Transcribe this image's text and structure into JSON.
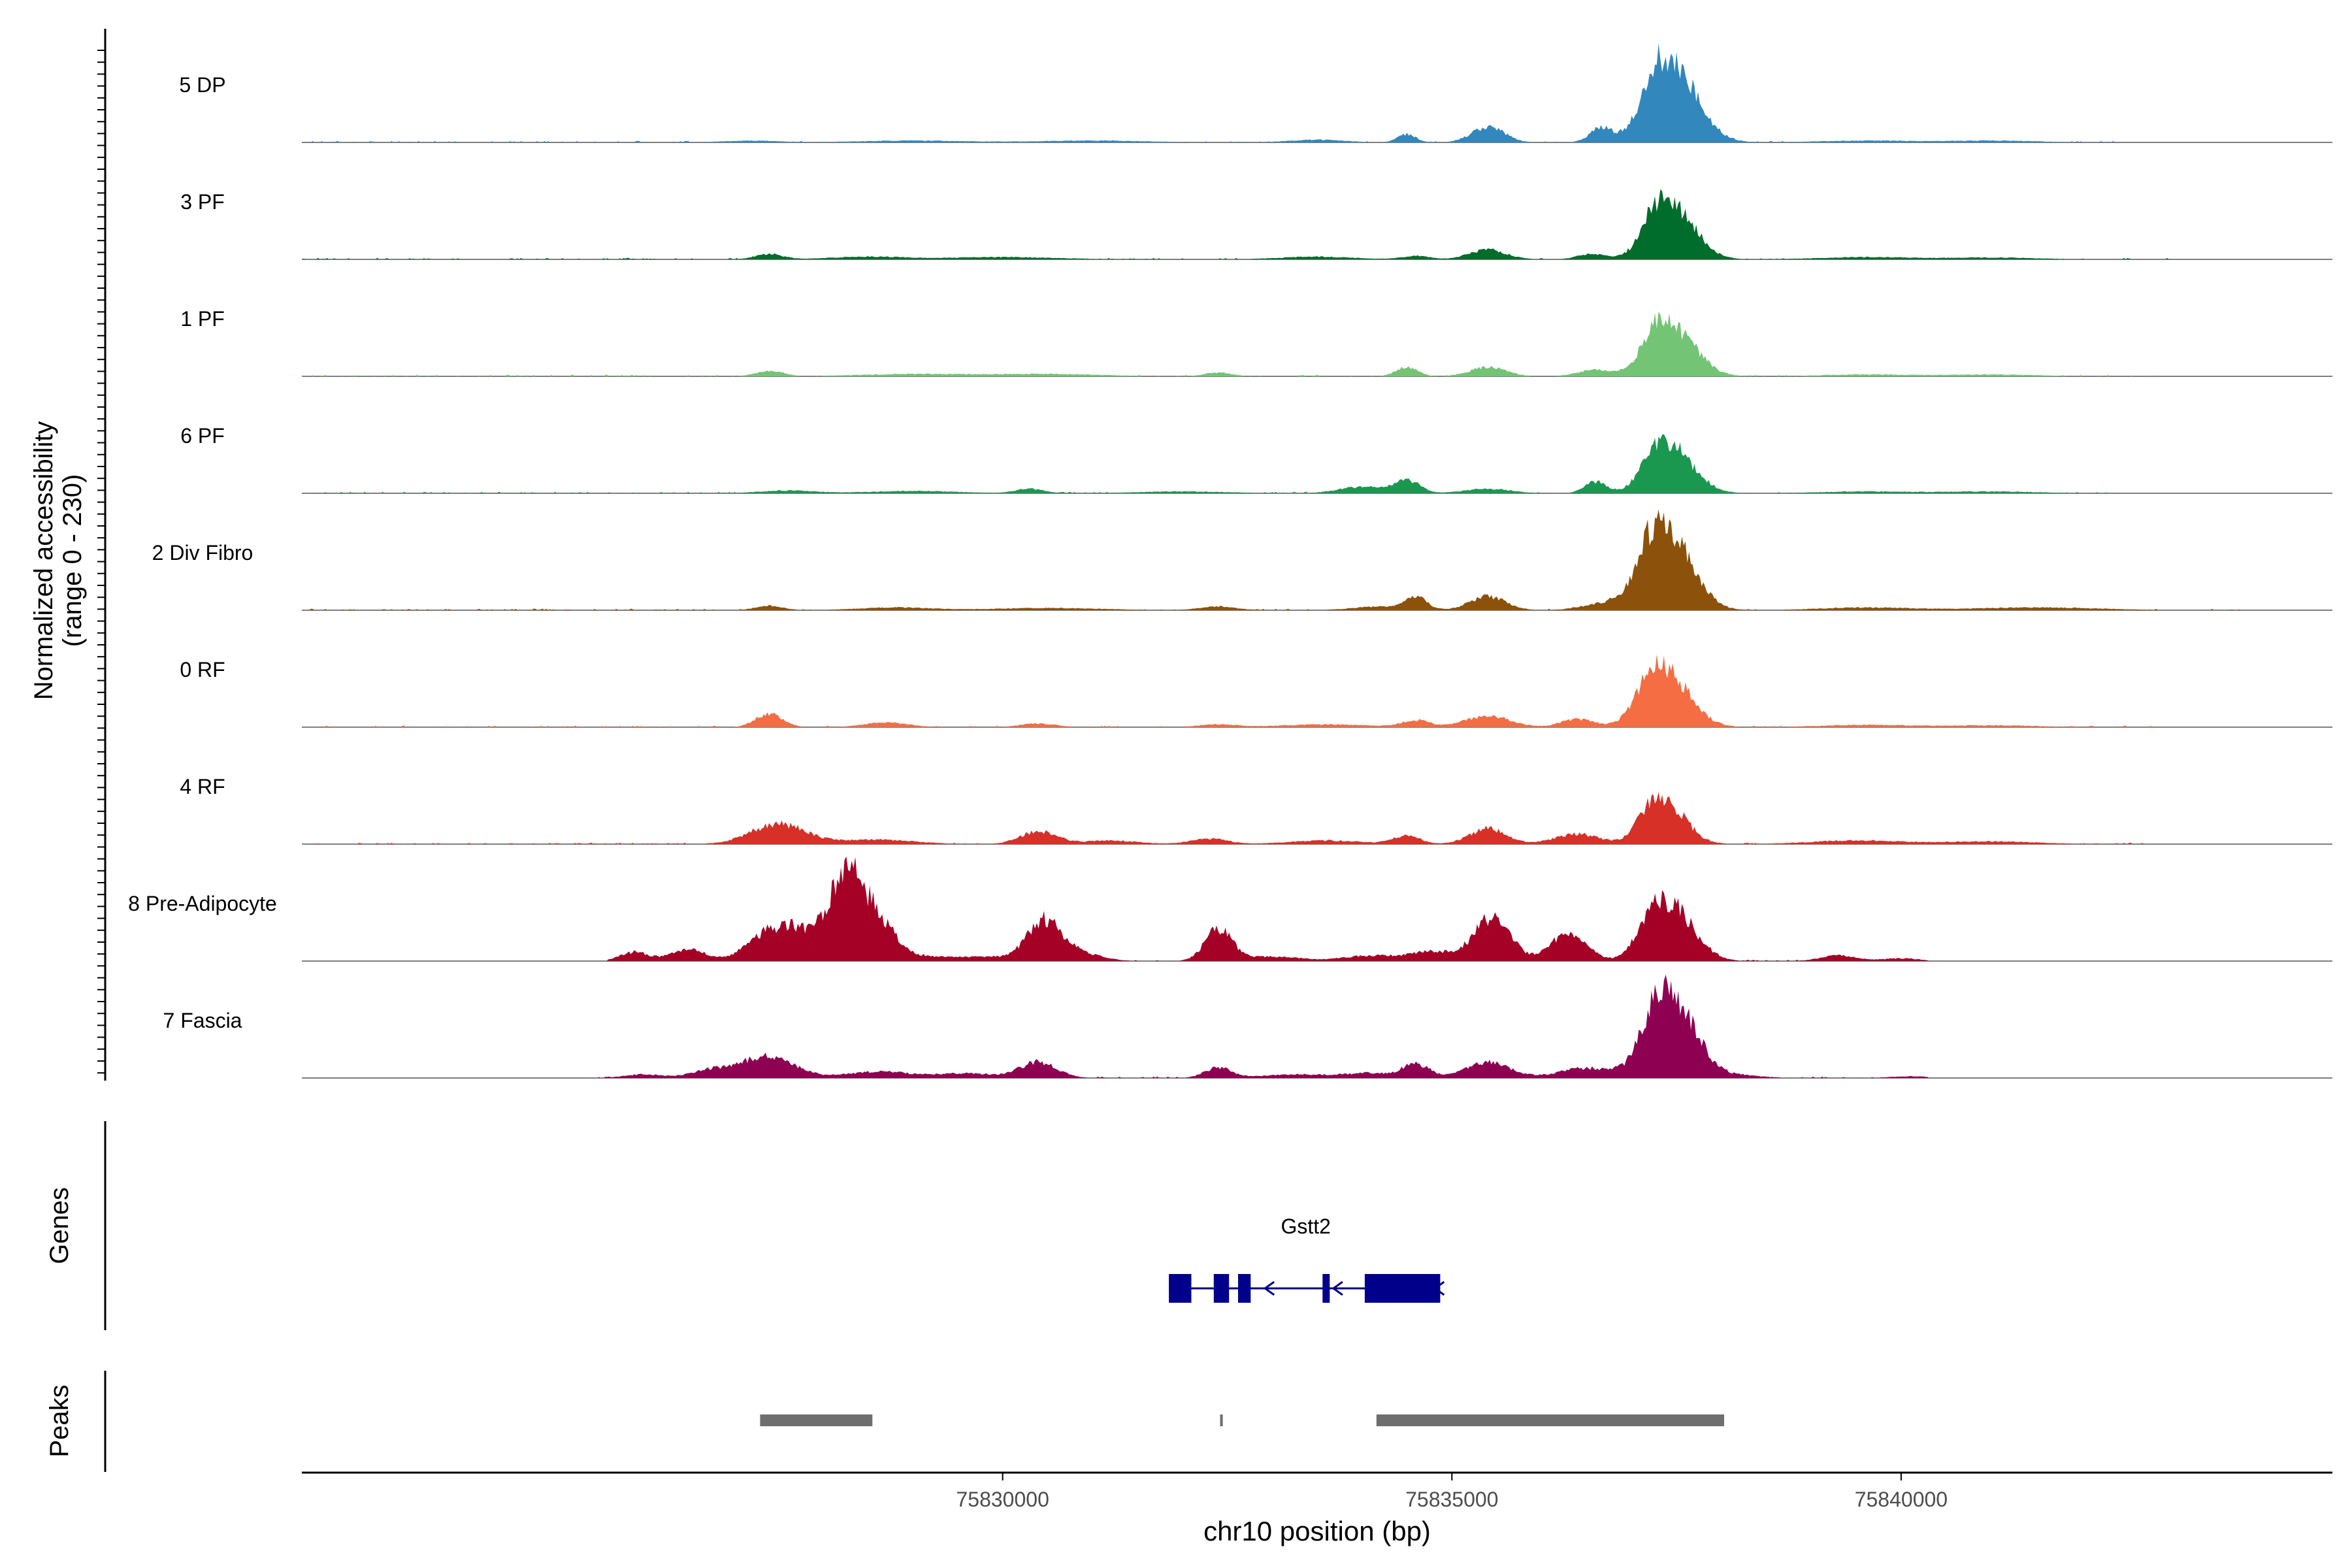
{
  "chart_data": {
    "type": "area",
    "subtype": "coverage-track",
    "y_axis_label_line1": "Normalized accessibility",
    "y_axis_label_line2": "(range 0 - 230)",
    "y_range": [
      0,
      230
    ],
    "x_label": "chr10 position (bp)",
    "xlim": [
      75822200,
      75844800
    ],
    "x_ticks": [
      75830000,
      75835000,
      75840000
    ],
    "x_tick_labels": [
      "75830000",
      "75835000",
      "75840000"
    ],
    "genes_label": "Genes",
    "peaks_label": "Peaks",
    "tracks": [
      {
        "name": "5 DP",
        "color": "#3288bd",
        "peaks": [
          [
            75837450,
            165,
            280
          ],
          [
            75837250,
            45,
            120
          ],
          [
            75836650,
            30,
            120
          ],
          [
            75835400,
            35,
            180
          ],
          [
            75834500,
            18,
            100
          ],
          [
            75833500,
            6,
            300
          ],
          [
            75831000,
            4,
            600
          ],
          [
            75829000,
            4,
            600
          ],
          [
            75827200,
            4,
            300
          ],
          [
            75839600,
            4,
            500
          ],
          [
            75841000,
            4,
            500
          ]
        ],
        "range": [
          75822200,
          75842400
        ]
      },
      {
        "name": "3 PF",
        "color": "#006d2c",
        "peaks": [
          [
            75837450,
            115,
            250
          ],
          [
            75837250,
            40,
            130
          ],
          [
            75836550,
            12,
            150
          ],
          [
            75835400,
            22,
            200
          ],
          [
            75834600,
            8,
            150
          ],
          [
            75833500,
            6,
            400
          ],
          [
            75827400,
            12,
            150
          ],
          [
            75828500,
            6,
            400
          ],
          [
            75830000,
            5,
            600
          ],
          [
            75839600,
            5,
            500
          ],
          [
            75841000,
            4,
            500
          ]
        ],
        "range": [
          75822200,
          75843200
        ]
      },
      {
        "name": "1 PF",
        "color": "#74c476",
        "peaks": [
          [
            75837450,
            105,
            260
          ],
          [
            75837250,
            40,
            140
          ],
          [
            75836600,
            14,
            200
          ],
          [
            75835400,
            20,
            200
          ],
          [
            75834500,
            20,
            120
          ],
          [
            75832400,
            8,
            150
          ],
          [
            75827400,
            12,
            150
          ],
          [
            75829000,
            5,
            600
          ],
          [
            75830500,
            5,
            600
          ],
          [
            75839600,
            4,
            500
          ],
          [
            75841000,
            4,
            500
          ]
        ],
        "range": [
          75822200,
          75842800
        ]
      },
      {
        "name": "6 PF",
        "color": "#1a9850",
        "peaks": [
          [
            75837450,
            95,
            250
          ],
          [
            75837250,
            40,
            140
          ],
          [
            75836600,
            25,
            120
          ],
          [
            75834500,
            28,
            140
          ],
          [
            75834000,
            14,
            250
          ],
          [
            75835400,
            10,
            250
          ],
          [
            75830300,
            10,
            150
          ],
          [
            75827600,
            6,
            300
          ],
          [
            75829000,
            5,
            500
          ],
          [
            75832000,
            4,
            500
          ],
          [
            75839600,
            4,
            500
          ],
          [
            75841000,
            4,
            500
          ]
        ],
        "range": [
          75822200,
          75842400
        ]
      },
      {
        "name": "2 Div Fibro",
        "color": "#8c510a",
        "peaks": [
          [
            75837400,
            165,
            270
          ],
          [
            75837200,
            50,
            140
          ],
          [
            75836700,
            14,
            250
          ],
          [
            75835400,
            30,
            200
          ],
          [
            75834600,
            28,
            120
          ],
          [
            75834200,
            8,
            300
          ],
          [
            75832400,
            8,
            200
          ],
          [
            75827400,
            10,
            150
          ],
          [
            75828800,
            6,
            400
          ],
          [
            75830500,
            5,
            600
          ],
          [
            75839600,
            6,
            500
          ],
          [
            75841500,
            6,
            700
          ]
        ],
        "range": [
          75822200,
          75843800
        ]
      },
      {
        "name": "0 RF",
        "color": "#f46d43",
        "peaks": [
          [
            75837400,
            110,
            260
          ],
          [
            75837200,
            50,
            150
          ],
          [
            75836400,
            18,
            180
          ],
          [
            75835400,
            25,
            250
          ],
          [
            75834600,
            15,
            150
          ],
          [
            75833600,
            6,
            500
          ],
          [
            75827400,
            30,
            150
          ],
          [
            75828700,
            10,
            250
          ],
          [
            75830400,
            8,
            200
          ],
          [
            75832400,
            6,
            200
          ],
          [
            75839600,
            5,
            500
          ],
          [
            75841000,
            4,
            500
          ]
        ],
        "range": [
          75822200,
          75842800
        ]
      },
      {
        "name": "4 RF",
        "color": "#d73027",
        "peaks": [
          [
            75837400,
            80,
            220
          ],
          [
            75837200,
            40,
            150
          ],
          [
            75836400,
            22,
            250
          ],
          [
            75835400,
            35,
            200
          ],
          [
            75834500,
            18,
            150
          ],
          [
            75833600,
            8,
            400
          ],
          [
            75827500,
            45,
            300
          ],
          [
            75828600,
            10,
            400
          ],
          [
            75830400,
            28,
            200
          ],
          [
            75832300,
            12,
            200
          ],
          [
            75831200,
            8,
            300
          ],
          [
            75839500,
            8,
            500
          ],
          [
            75841000,
            6,
            500
          ]
        ],
        "range": [
          75822200,
          75842800
        ]
      },
      {
        "name": "8 Pre-Adipocyte",
        "color": "#a50026",
        "peaks": [
          [
            75837450,
            115,
            250
          ],
          [
            75837200,
            50,
            150
          ],
          [
            75836300,
            60,
            200
          ],
          [
            75835450,
            95,
            200
          ],
          [
            75834800,
            20,
            250
          ],
          [
            75834100,
            12,
            300
          ],
          [
            75828250,
            185,
            180
          ],
          [
            75828600,
            85,
            180
          ],
          [
            75827700,
            70,
            250
          ],
          [
            75827300,
            40,
            200
          ],
          [
            75826500,
            25,
            200
          ],
          [
            75830450,
            85,
            180
          ],
          [
            75830800,
            20,
            250
          ],
          [
            75829000,
            12,
            300
          ],
          [
            75829800,
            10,
            300
          ],
          [
            75832400,
            70,
            150
          ],
          [
            75833000,
            10,
            300
          ],
          [
            75825900,
            20,
            150
          ],
          [
            75839300,
            12,
            200
          ],
          [
            75840000,
            6,
            200
          ]
        ],
        "range": [
          75825600,
          75840300
        ]
      },
      {
        "name": "7 Fascia",
        "color": "#8e0152",
        "peaks": [
          [
            75837450,
            175,
            260
          ],
          [
            75837250,
            50,
            140
          ],
          [
            75836500,
            22,
            300
          ],
          [
            75835400,
            35,
            250
          ],
          [
            75834600,
            30,
            150
          ],
          [
            75834100,
            10,
            250
          ],
          [
            75827400,
            48,
            280
          ],
          [
            75826800,
            18,
            250
          ],
          [
            75828600,
            14,
            350
          ],
          [
            75830400,
            35,
            200
          ],
          [
            75829600,
            10,
            350
          ],
          [
            75832400,
            22,
            150
          ],
          [
            75833300,
            8,
            400
          ],
          [
            75826000,
            8,
            200
          ],
          [
            75838200,
            6,
            250
          ],
          [
            75840100,
            4,
            200
          ]
        ],
        "range": [
          75825500,
          75840300
        ]
      }
    ],
    "genes": [
      {
        "name": "Gstt2",
        "strand": "-",
        "start": 75831850,
        "end": 75834870,
        "exons": [
          [
            75831850,
            75832100
          ],
          [
            75832350,
            75832520
          ],
          [
            75832620,
            75832760
          ],
          [
            75833560,
            75833640
          ],
          [
            75834030,
            75834870
          ]
        ]
      }
    ],
    "peak_regions": [
      [
        75827300,
        75828550
      ],
      [
        75832420,
        75832450
      ],
      [
        75834160,
        75838030
      ]
    ]
  }
}
